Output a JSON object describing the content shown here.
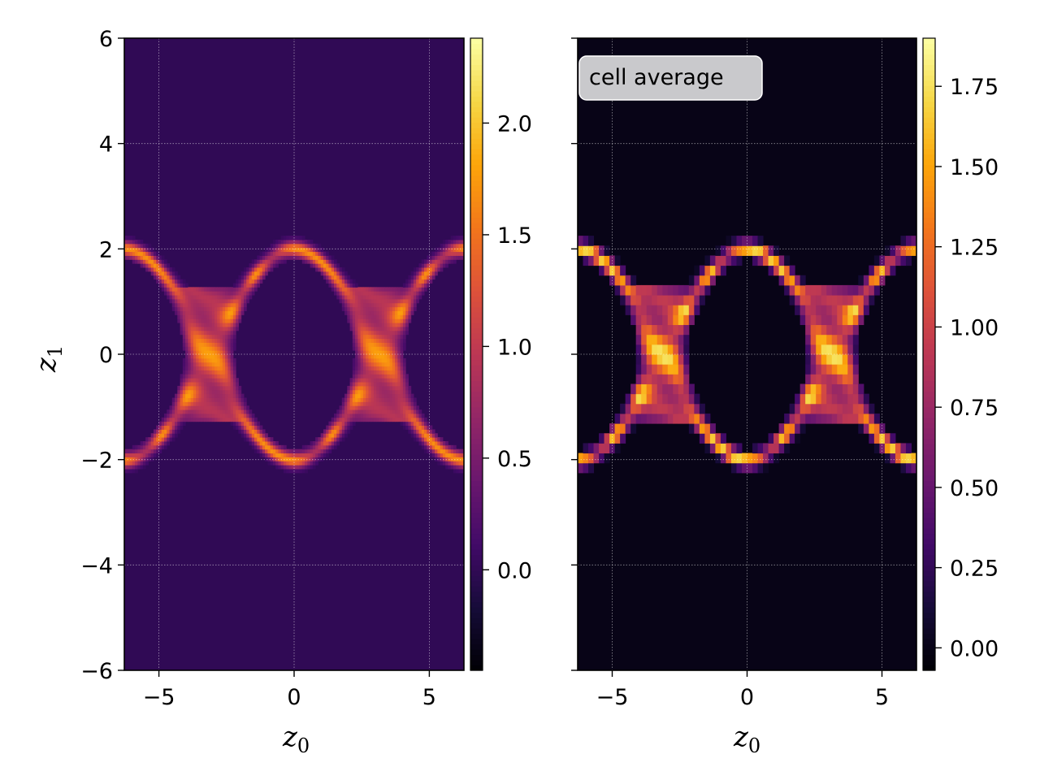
{
  "chart_data": [
    {
      "type": "heatmap",
      "panel": "left",
      "title": "",
      "xlabel": "z",
      "xlabel_sub": "0",
      "ylabel": "z",
      "ylabel_sub": "1",
      "xlim": [
        -6.28,
        6.28
      ],
      "ylim": [
        -6,
        6
      ],
      "xticks": [
        -5,
        0,
        5
      ],
      "xtick_labels": [
        "−5",
        "0",
        "5"
      ],
      "yticks": [
        -6,
        -4,
        -2,
        0,
        2,
        4,
        6
      ],
      "ytick_labels": [
        "−6",
        "−4",
        "−2",
        "0",
        "2",
        "4",
        "6"
      ],
      "grid": true,
      "colormap": "inferno",
      "background_value": 0.0,
      "description_values": {
        "separatrix_peak": 2.35,
        "eye_center": 0.0,
        "negative_min": -0.45
      },
      "colorbar": {
        "min": -0.45,
        "max": 2.38,
        "ticks": [
          0.0,
          0.5,
          1.0,
          1.5,
          2.0
        ],
        "tick_labels": [
          "0.0",
          "0.5",
          "1.0",
          "1.5",
          "2.0"
        ]
      }
    },
    {
      "type": "heatmap",
      "panel": "right",
      "title": "",
      "annotation": "cell average",
      "xlabel": "z",
      "xlabel_sub": "0",
      "xlim": [
        -6.28,
        6.28
      ],
      "ylim": [
        -6,
        6
      ],
      "xticks": [
        -5,
        0,
        5
      ],
      "xtick_labels": [
        "−5",
        "0",
        "5"
      ],
      "yticks": [
        -6,
        -4,
        -2,
        0,
        2,
        4,
        6
      ],
      "grid": true,
      "colormap": "inferno",
      "grid_cells": [
        64,
        64
      ],
      "colorbar": {
        "min": -0.07,
        "max": 1.9,
        "ticks": [
          0.0,
          0.25,
          0.5,
          0.75,
          1.0,
          1.25,
          1.5,
          1.75
        ],
        "tick_labels": [
          "0.00",
          "0.25",
          "0.50",
          "0.75",
          "1.00",
          "1.25",
          "1.50",
          "1.75"
        ]
      }
    }
  ]
}
